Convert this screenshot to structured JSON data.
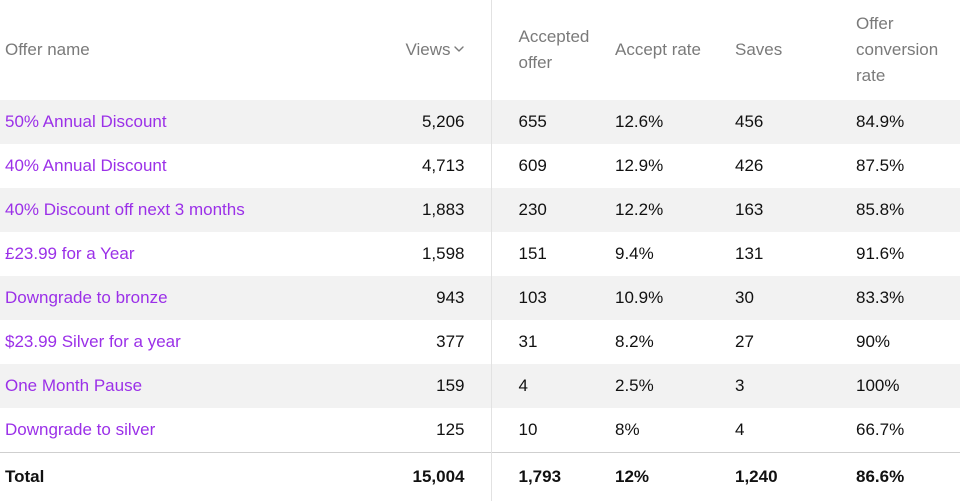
{
  "columns": {
    "name": "Offer name",
    "views": "Views",
    "accepted_line1": "Accepted",
    "accepted_line2": "offer",
    "accept_rate": "Accept rate",
    "saves": "Saves",
    "conversion_line1": "Offer",
    "conversion_line2": "conversion",
    "conversion_line3": "rate"
  },
  "sort_icon": "chevron-down-icon",
  "rows": [
    {
      "name": "50% Annual Discount",
      "views": "5,206",
      "accepted": "655",
      "accept_rate": "12.6%",
      "saves": "456",
      "conversion": "84.9%"
    },
    {
      "name": "40% Annual Discount",
      "views": "4,713",
      "accepted": "609",
      "accept_rate": "12.9%",
      "saves": "426",
      "conversion": "87.5%"
    },
    {
      "name": "40% Discount off next 3 months",
      "views": "1,883",
      "accepted": "230",
      "accept_rate": "12.2%",
      "saves": "163",
      "conversion": "85.8%"
    },
    {
      "name": "£23.99 for a Year",
      "views": "1,598",
      "accepted": "151",
      "accept_rate": "9.4%",
      "saves": "131",
      "conversion": "91.6%"
    },
    {
      "name": "Downgrade to bronze",
      "views": "943",
      "accepted": "103",
      "accept_rate": "10.9%",
      "saves": "30",
      "conversion": "83.3%"
    },
    {
      "name": "$23.99 Silver for a year",
      "views": "377",
      "accepted": "31",
      "accept_rate": "8.2%",
      "saves": "27",
      "conversion": "90%"
    },
    {
      "name": "One Month Pause",
      "views": "159",
      "accepted": "4",
      "accept_rate": "2.5%",
      "saves": "3",
      "conversion": "100%"
    },
    {
      "name": "Downgrade to silver",
      "views": "125",
      "accepted": "10",
      "accept_rate": "8%",
      "saves": "4",
      "conversion": "66.7%"
    }
  ],
  "total": {
    "label": "Total",
    "views": "15,004",
    "accepted": "1,793",
    "accept_rate": "12%",
    "saves": "1,240",
    "conversion": "86.6%"
  },
  "colors": {
    "link": "#9b30e8",
    "header_text": "#7a7a7a",
    "stripe": "#f2f2f2"
  }
}
